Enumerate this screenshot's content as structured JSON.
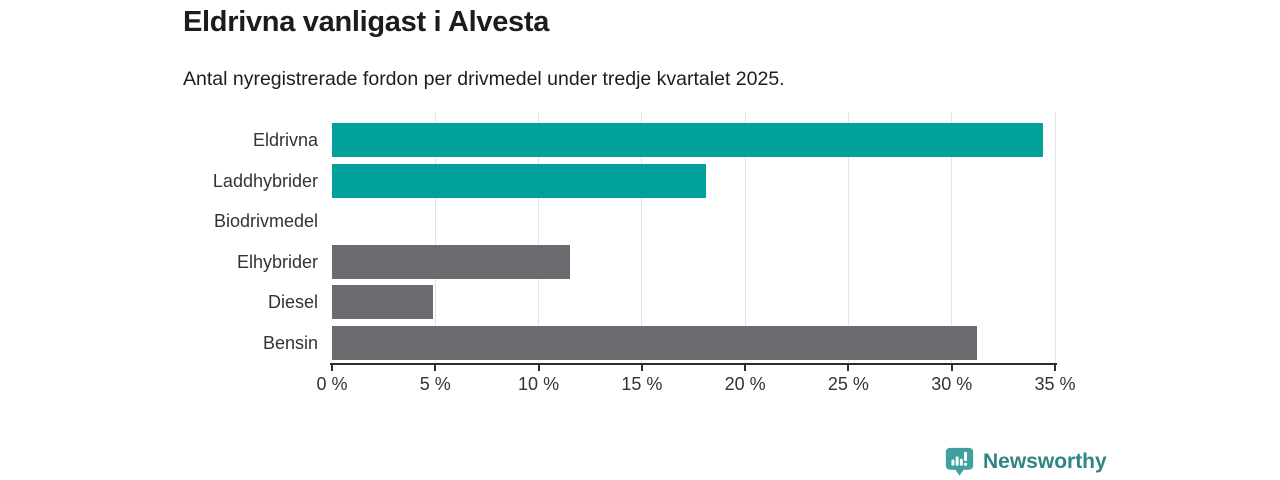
{
  "header": {
    "title": "Eldrivna vanligast i Alvesta",
    "subtitle": "Antal nyregistrerade fordon per drivmedel under tredje kvartalet 2025."
  },
  "chart_data": {
    "type": "bar",
    "orientation": "horizontal",
    "title": "Eldrivna vanligast i Alvesta",
    "subtitle": "Antal nyregistrerade fordon per drivmedel under tredje kvartalet 2025.",
    "categories": [
      "Eldrivna",
      "Laddhybrider",
      "Biodrivmedel",
      "Elhybrider",
      "Diesel",
      "Bensin"
    ],
    "values": [
      34.4,
      18.1,
      0,
      11.5,
      4.9,
      31.2
    ],
    "unit": "%",
    "xlabel": "",
    "ylabel": "",
    "xlim": [
      0,
      35
    ],
    "x_ticks": [
      0,
      5,
      10,
      15,
      20,
      25,
      30,
      35
    ],
    "x_tick_labels": [
      "0 %",
      "5 %",
      "10 %",
      "15 %",
      "20 %",
      "25 %",
      "30 %",
      "35 %"
    ],
    "grid": true,
    "legend": null,
    "bar_colors": [
      "#00a19a",
      "#00a19a",
      "#00a19a",
      "#6c6a6e",
      "#6c6a6e",
      "#6c6a6e"
    ],
    "colors": {
      "electric_teal": "#00a19a",
      "fossil_gray": "#6c6a6e",
      "gridline": "#e3e3e3",
      "axis": "#2d2d2d"
    }
  },
  "footer": {
    "brand": "Newsworthy",
    "logo_bubble_color": "#3fa09d",
    "brand_text_color": "#2e8583"
  }
}
